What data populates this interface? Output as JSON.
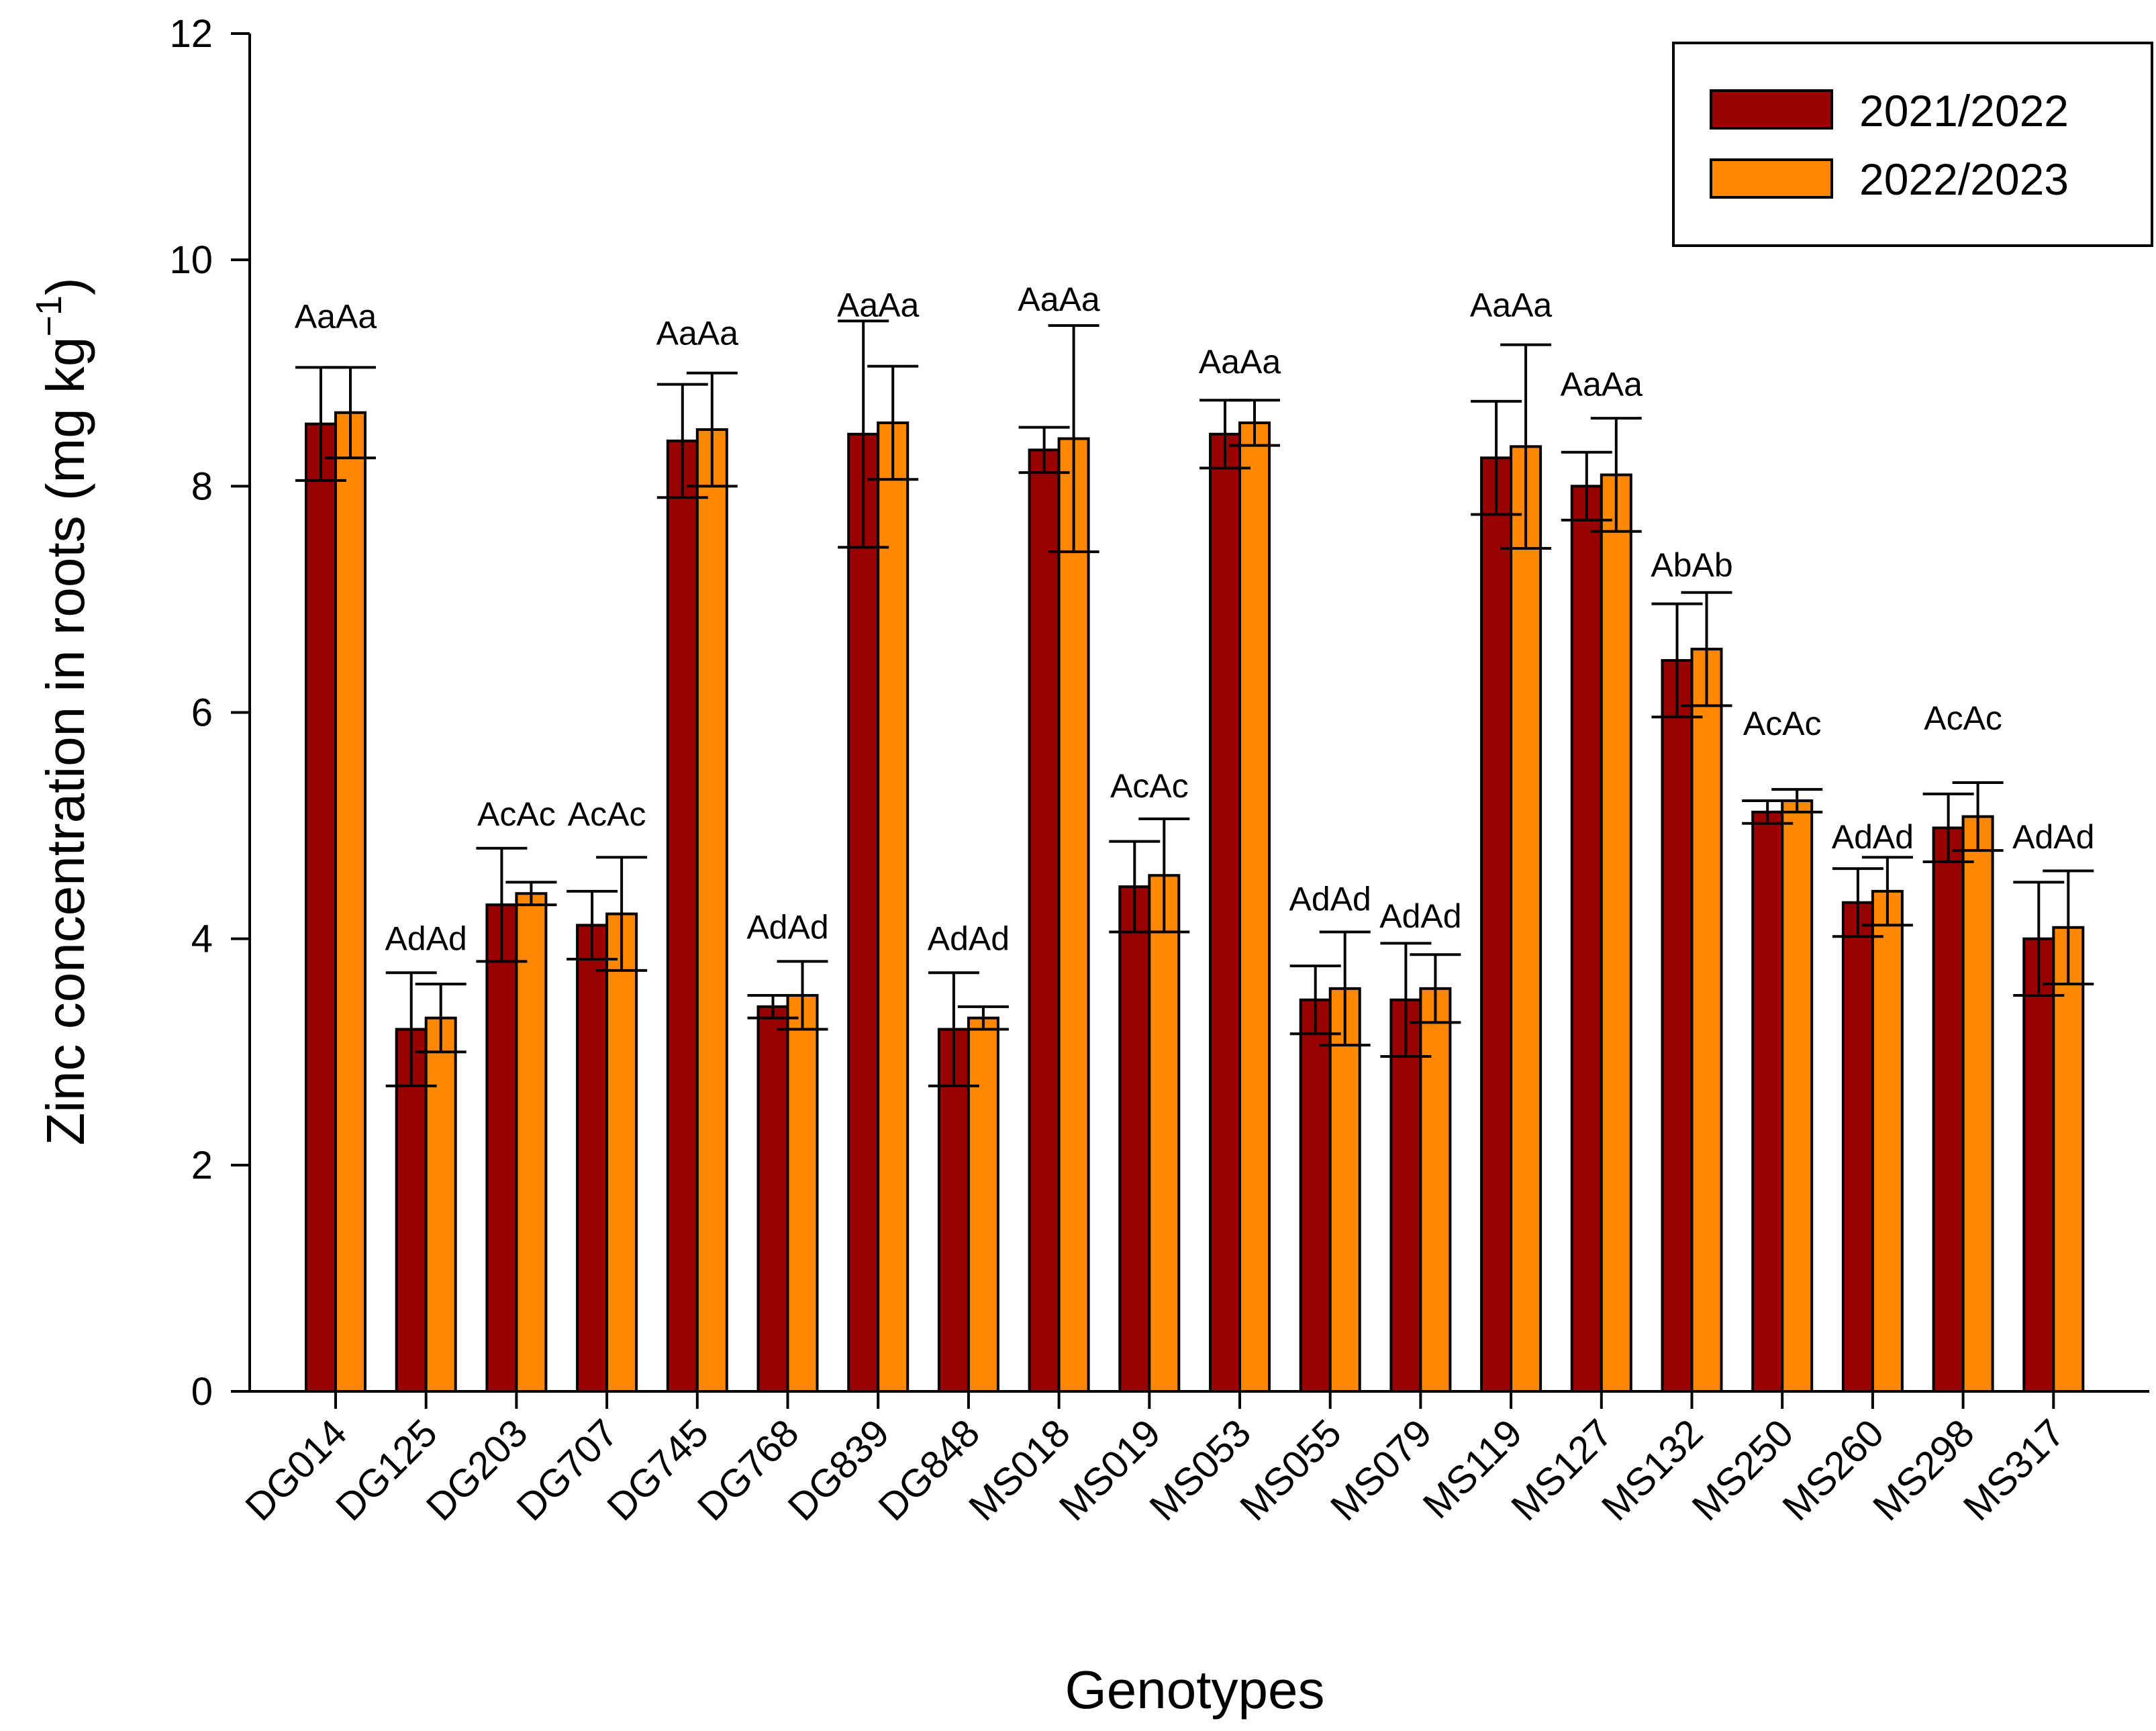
{
  "chart_data": {
    "type": "bar",
    "title": "",
    "xlabel": "Genotypes",
    "ylabel": "Zinc concentration in roots (mg kg",
    "ylabel_superscript": "−1",
    "ylabel_close": ")",
    "ylim": [
      0,
      12
    ],
    "yticks": [
      0,
      2,
      4,
      6,
      8,
      10,
      12
    ],
    "grid": false,
    "legend_position": "top-right",
    "categories": [
      "DG014",
      "DG125",
      "DG203",
      "DG707",
      "DG745",
      "DG768",
      "DG839",
      "DG848",
      "MS018",
      "MS019",
      "MS053",
      "MS055",
      "MS079",
      "MS119",
      "MS127",
      "MS132",
      "MS250",
      "MS260",
      "MS298",
      "MS317"
    ],
    "series": [
      {
        "name": "2021/2022",
        "color": "#990000",
        "values": [
          8.55,
          3.2,
          4.3,
          4.12,
          8.4,
          3.4,
          8.46,
          3.2,
          8.32,
          4.46,
          8.46,
          3.46,
          3.46,
          8.25,
          8.0,
          6.46,
          5.12,
          4.32,
          4.98,
          4.0
        ],
        "errors": [
          0.5,
          0.5,
          0.5,
          0.3,
          0.5,
          0.1,
          1.0,
          0.5,
          0.2,
          0.4,
          0.3,
          0.3,
          0.5,
          0.5,
          0.3,
          0.5,
          0.1,
          0.3,
          0.3,
          0.5
        ]
      },
      {
        "name": "2022/2023",
        "color": "#ff8800",
        "values": [
          8.65,
          3.3,
          4.4,
          4.22,
          8.5,
          3.5,
          8.56,
          3.3,
          8.42,
          4.56,
          8.56,
          3.56,
          3.56,
          8.35,
          8.1,
          6.56,
          5.22,
          4.42,
          5.08,
          4.1
        ],
        "errors": [
          0.4,
          0.3,
          0.1,
          0.5,
          0.5,
          0.3,
          0.5,
          0.1,
          1.0,
          0.5,
          0.2,
          0.5,
          0.3,
          0.9,
          0.5,
          0.5,
          0.1,
          0.3,
          0.3,
          0.5
        ]
      }
    ],
    "annotations": [
      "AaAa",
      "AdAd",
      "AcAc",
      "AcAc",
      "AaAa",
      "AdAd",
      "AaAa",
      "AdAd",
      "AaAa",
      "AcAc",
      "AaAa",
      "AdAd",
      "AdAd",
      "AaAa",
      "AaAa",
      "AbAb",
      "AcAc",
      "AdAd",
      "AcAc",
      "AdAd"
    ],
    "annotation_y": [
      9.4,
      3.9,
      5.0,
      5.0,
      9.25,
      4.0,
      9.5,
      3.9,
      9.55,
      5.25,
      9.0,
      4.25,
      4.1,
      9.5,
      8.8,
      7.2,
      5.8,
      4.8,
      5.85,
      4.8
    ]
  }
}
